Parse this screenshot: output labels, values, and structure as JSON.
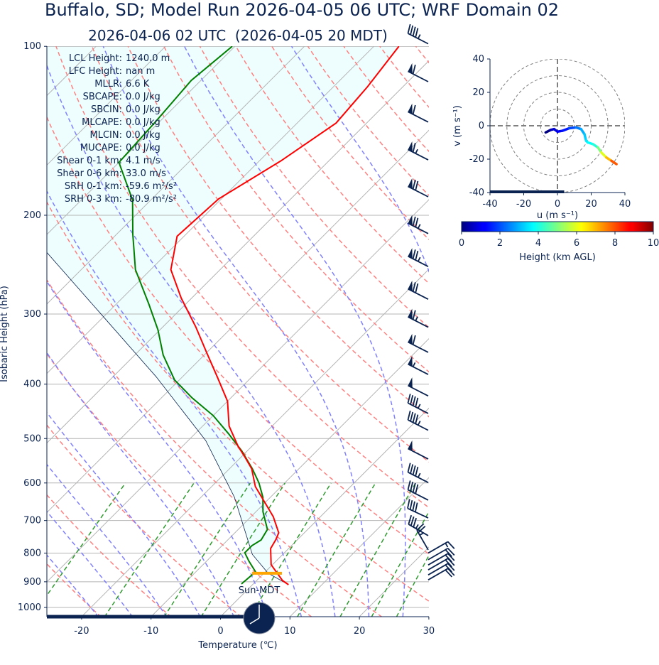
{
  "header": {
    "title": "Buffalo, SD; Model Run 2026-04-05 06 UTC; WRF Domain 02",
    "subtitle": "2026-04-06 02 UTC  (2026-04-05 20 MDT)"
  },
  "stats": [
    {
      "label": "LCL Height:",
      "value": "1240.0 m"
    },
    {
      "label": "LFC Height:",
      "value": "nan m"
    },
    {
      "label": "MLLR:",
      "value": "6.6 K"
    },
    {
      "label": "SBCAPE:",
      "value": "0.0 J/kg"
    },
    {
      "label": "SBCIN:",
      "value": "0.0 J/kg"
    },
    {
      "label": "MLCAPE:",
      "value": "0.0 J/kg"
    },
    {
      "label": "MLCIN:",
      "value": "0.0 J/kg"
    },
    {
      "label": "MUCAPE:",
      "value": "0.0 J/kg"
    },
    {
      "label": "Shear 0-1 km:",
      "value": "4.1 m/s"
    },
    {
      "label": "Shear 0-6 km:",
      "value": "33.0 m/s"
    },
    {
      "label": "SRH 0-1 km:",
      "value": "-59.6 m²/s²"
    },
    {
      "label": "SRH 0-3 km:",
      "value": "-80.9 m²/s²"
    }
  ],
  "time_label": "Sun-MDT",
  "clock_time": "20:00",
  "colors": {
    "text": "#0b2350",
    "temperature": "#ff0000",
    "dewpoint": "#008000",
    "parcel": "#0b2350",
    "cin_fill": "#eefefe",
    "lcl": "#ffa500",
    "dry_adiabat": "#ff8080",
    "moist_adiabat": "#8080ff",
    "mixing_ratio": "#2f9a2f",
    "grid": "#b4b4b4"
  },
  "chart_data": [
    {
      "type": "line",
      "kind": "skew-t log-p",
      "xlabel": "Temperature (℃)",
      "ylabel": "Isobaric Height (hPa)",
      "xlim": [
        -25,
        30
      ],
      "ylim": [
        1040,
        100
      ],
      "yscale": "log",
      "grid": true,
      "x_ticks": [
        "-20",
        "-10",
        "0",
        "10",
        "20",
        "30"
      ],
      "y_ticks": [
        "100",
        "200",
        "300",
        "400",
        "500",
        "600",
        "700",
        "800",
        "900",
        "1000"
      ],
      "lcl_pressure": 869,
      "series": [
        {
          "key": "temperature",
          "pressure": [
            911,
            895,
            839,
            785,
            758,
            736,
            689,
            646,
            609,
            566,
            542,
            516,
            475,
            429,
            388,
            350,
            316,
            281,
            250,
            218,
            187,
            160,
            137,
            118,
            100
          ],
          "values": [
            5.2,
            3.7,
            -0.2,
            -2.6,
            -3.1,
            -3.7,
            -6.8,
            -10.4,
            -13.7,
            -16.8,
            -19.2,
            -22.0,
            -26.2,
            -30.0,
            -35.0,
            -40.2,
            -45.3,
            -51.5,
            -57.1,
            -61.0,
            -60.4,
            -56.9,
            -54.4,
            -55.1,
            -56.4
          ]
        },
        {
          "key": "dewpoint",
          "pressure": [
            908,
            864,
            827,
            799,
            776,
            758,
            726,
            675,
            636,
            600,
            566,
            526,
            490,
            455,
            423,
            393,
            355,
            320,
            288,
            250,
            216,
            188,
            161,
            136,
            115,
            100
          ],
          "values": [
            -1.7,
            -1.4,
            -3.9,
            -5.7,
            -5.7,
            -5.2,
            -5.8,
            -9.0,
            -11.1,
            -13.7,
            -16.7,
            -20.8,
            -25.2,
            -30.0,
            -35.6,
            -40.7,
            -45.9,
            -50.3,
            -55.3,
            -62.2,
            -67.7,
            -72.6,
            -80.0,
            -80.6,
            -81.4,
            -80.4
          ]
        },
        {
          "key": "parcel",
          "pressure": [
            909,
            869,
            804,
            636,
            504,
            388,
            298,
            232,
            180,
            140,
            100
          ],
          "values": [
            5.0,
            0.6,
            -4.4,
            -15.2,
            -27.5,
            -43.8,
            -61.2,
            -77.7,
            -92,
            -104,
            -118
          ]
        }
      ],
      "wind_barbs": {
        "units": "kt",
        "pressure": [
          95,
          111,
          131,
          153,
          178,
          207,
          237,
          271,
          304,
          337,
          369,
          403,
          433,
          464,
          522,
          575,
          618,
          665,
          715,
          758,
          800,
          822,
          840,
          857,
          875,
          893
        ],
        "speed": [
          45,
          60,
          60,
          65,
          70,
          75,
          75,
          70,
          65,
          60,
          55,
          50,
          45,
          45,
          50,
          45,
          40,
          40,
          35,
          25,
          15,
          20,
          20,
          20,
          20,
          20
        ],
        "direction": [
          297,
          297,
          297,
          297,
          297,
          297,
          297,
          297,
          297,
          297,
          297,
          297,
          297,
          297,
          297,
          297,
          297,
          295,
          300,
          330,
          60,
          60,
          60,
          60,
          60,
          60
        ]
      }
    },
    {
      "type": "line",
      "kind": "hodograph",
      "xlabel": "u (m s⁻¹)",
      "ylabel": "v (m s⁻¹)",
      "xlim": [
        -40,
        40
      ],
      "ylim": [
        -40,
        40
      ],
      "x_ticks": [
        "-40",
        "-20",
        "0",
        "20",
        "40"
      ],
      "y_ticks": [
        "40",
        "20",
        "0",
        "-20",
        "-40"
      ],
      "rings": [
        10,
        20,
        30,
        40
      ],
      "u": [
        -7,
        -4,
        -2,
        0,
        3,
        7,
        11,
        14,
        16,
        17,
        18,
        21,
        24,
        26,
        29,
        32,
        35
      ],
      "v": [
        -4,
        -2.5,
        -2,
        -3.5,
        -3,
        -1.5,
        -1,
        -2,
        -5,
        -9,
        -10,
        -11,
        -13,
        -16,
        -19,
        -21,
        -23
      ],
      "height_km": [
        0,
        0.5,
        0.8,
        1.0,
        1.3,
        1.8,
        2.3,
        2.8,
        3.1,
        3.4,
        3.6,
        4.0,
        5.0,
        6.0,
        7.0,
        8.0,
        9.0
      ],
      "colorbar": {
        "label": "Height (km AGL)",
        "range": [
          0,
          10
        ],
        "colormap": "jet",
        "ticks": [
          "0",
          "2",
          "4",
          "6",
          "8",
          "10"
        ]
      }
    }
  ]
}
